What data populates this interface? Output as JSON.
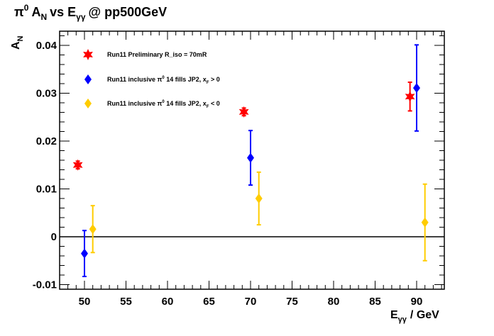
{
  "chart_data": {
    "type": "scatter",
    "title": {
      "pi": "π",
      "pi_sup": "0",
      "a": "A",
      "a_sub": "N",
      "vs": "vs E",
      "e_sub": "γγ",
      "rest": "@ pp500GeV"
    },
    "ylabel": {
      "main": "A",
      "sub": "N"
    },
    "xlabel": {
      "main": "E",
      "sub": "γγ",
      "rest": "/ GeV"
    },
    "xlim": [
      47,
      93
    ],
    "ylim": [
      -0.011,
      0.0425
    ],
    "x_ticks": [
      "50",
      "55",
      "60",
      "65",
      "70",
      "75",
      "80",
      "85",
      "90"
    ],
    "x_tick_values": [
      50,
      55,
      60,
      65,
      70,
      75,
      80,
      85,
      90
    ],
    "y_ticks": [
      "-0.01",
      "0",
      "0.01",
      "0.02",
      "0.03",
      "0.04"
    ],
    "y_tick_values": [
      -0.01,
      0,
      0.01,
      0.02,
      0.03,
      0.04
    ],
    "zero_line": 0,
    "legend_position": "top-left",
    "series": [
      {
        "legend": {
          "text": "Run11 Preliminary R_iso = 70mR"
        },
        "color": "#ff0000",
        "marker": "star",
        "points": [
          {
            "x": 49.2,
            "y": 0.015,
            "err": 0.0008
          },
          {
            "x": 69.2,
            "y": 0.0261,
            "err": 0.0008
          },
          {
            "x": 89.2,
            "y": 0.0293,
            "err": 0.003
          }
        ]
      },
      {
        "legend": {
          "text": "Run11 inclusive π",
          "sup": "0",
          "mid": " 14 fills JP2, x",
          "sub": "F",
          "tail": " > 0"
        },
        "color": "#0000ff",
        "marker": "diamond",
        "points": [
          {
            "x": 50.0,
            "y": -0.0035,
            "err": 0.0048
          },
          {
            "x": 70.0,
            "y": 0.0165,
            "err": 0.0057
          },
          {
            "x": 90.0,
            "y": 0.0311,
            "err": 0.009
          }
        ]
      },
      {
        "legend": {
          "text": "Run11 inclusive π",
          "sup": "0",
          "mid": " 14 fills JP2, x",
          "sub": "F",
          "tail": " < 0"
        },
        "color": "#ffcc00",
        "marker": "diamond",
        "points": [
          {
            "x": 51.0,
            "y": 0.0016,
            "err": 0.0049
          },
          {
            "x": 71.0,
            "y": 0.008,
            "err": 0.0055
          },
          {
            "x": 91.0,
            "y": 0.003,
            "err": 0.008
          }
        ]
      }
    ]
  }
}
